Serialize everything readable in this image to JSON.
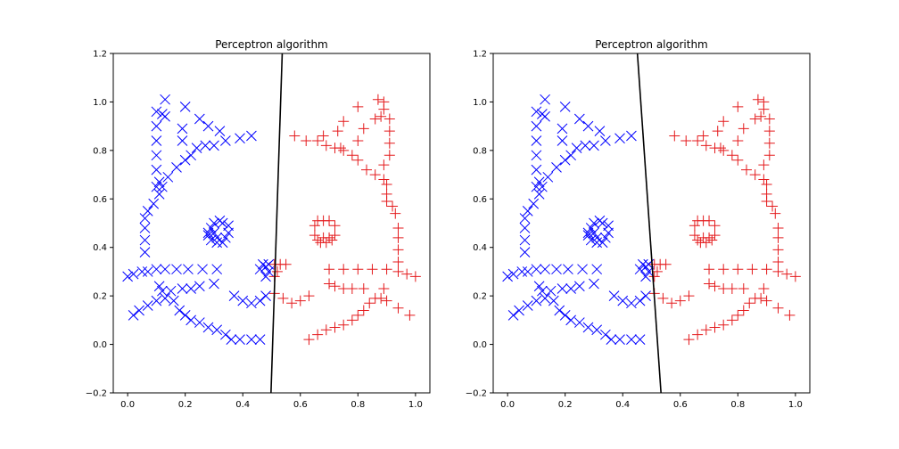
{
  "figure": {
    "background": "#ffffff",
    "axis_color": "#000000",
    "blue": "#0000ff",
    "red": "#e41a1c"
  },
  "chart_data": [
    {
      "type": "scatter",
      "title": "Perceptron algorithm",
      "xlim": [
        -0.05,
        1.05
      ],
      "ylim": [
        -0.2,
        1.2
      ],
      "xticks": [
        "0.0",
        "0.2",
        "0.4",
        "0.6",
        "0.8",
        "1.0"
      ],
      "yticks": [
        "−0.2",
        "0.0",
        "0.2",
        "0.4",
        "0.6",
        "0.8",
        "1.0",
        "1.2"
      ],
      "grid": false,
      "series": [
        {
          "marker": "x",
          "color": "#0000ff",
          "points": [
            [
              0.0,
              0.28
            ],
            [
              0.02,
              0.29
            ],
            [
              0.05,
              0.3
            ],
            [
              0.07,
              0.3
            ],
            [
              0.1,
              0.31
            ],
            [
              0.13,
              0.31
            ],
            [
              0.17,
              0.31
            ],
            [
              0.21,
              0.31
            ],
            [
              0.26,
              0.31
            ],
            [
              0.31,
              0.31
            ],
            [
              0.02,
              0.12
            ],
            [
              0.04,
              0.14
            ],
            [
              0.07,
              0.16
            ],
            [
              0.1,
              0.18
            ],
            [
              0.13,
              0.19
            ],
            [
              0.16,
              0.18
            ],
            [
              0.18,
              0.14
            ],
            [
              0.2,
              0.12
            ],
            [
              0.22,
              0.1
            ],
            [
              0.25,
              0.09
            ],
            [
              0.28,
              0.07
            ],
            [
              0.31,
              0.06
            ],
            [
              0.34,
              0.04
            ],
            [
              0.36,
              0.02
            ],
            [
              0.39,
              0.02
            ],
            [
              0.43,
              0.02
            ],
            [
              0.46,
              0.02
            ],
            [
              0.11,
              0.24
            ],
            [
              0.12,
              0.22
            ],
            [
              0.15,
              0.22
            ],
            [
              0.19,
              0.23
            ],
            [
              0.22,
              0.23
            ],
            [
              0.25,
              0.24
            ],
            [
              0.3,
              0.25
            ],
            [
              0.37,
              0.2
            ],
            [
              0.4,
              0.18
            ],
            [
              0.43,
              0.17
            ],
            [
              0.46,
              0.18
            ],
            [
              0.48,
              0.2
            ],
            [
              0.46,
              0.31
            ],
            [
              0.47,
              0.33
            ],
            [
              0.48,
              0.32
            ],
            [
              0.49,
              0.3
            ],
            [
              0.48,
              0.28
            ],
            [
              0.49,
              0.33
            ],
            [
              0.06,
              0.38
            ],
            [
              0.06,
              0.43
            ],
            [
              0.06,
              0.48
            ],
            [
              0.06,
              0.52
            ],
            [
              0.07,
              0.55
            ],
            [
              0.09,
              0.58
            ],
            [
              0.11,
              0.62
            ],
            [
              0.12,
              0.65
            ],
            [
              0.14,
              0.69
            ],
            [
              0.11,
              0.67
            ],
            [
              0.1,
              0.65
            ],
            [
              0.1,
              0.72
            ],
            [
              0.1,
              0.78
            ],
            [
              0.1,
              0.84
            ],
            [
              0.1,
              0.9
            ],
            [
              0.1,
              0.96
            ],
            [
              0.12,
              0.95
            ],
            [
              0.13,
              0.94
            ],
            [
              0.13,
              1.01
            ],
            [
              0.17,
              0.73
            ],
            [
              0.2,
              0.76
            ],
            [
              0.22,
              0.78
            ],
            [
              0.24,
              0.81
            ],
            [
              0.27,
              0.82
            ],
            [
              0.3,
              0.82
            ],
            [
              0.34,
              0.84
            ],
            [
              0.39,
              0.85
            ],
            [
              0.43,
              0.86
            ],
            [
              0.19,
              0.84
            ],
            [
              0.19,
              0.89
            ],
            [
              0.2,
              0.98
            ],
            [
              0.25,
              0.93
            ],
            [
              0.28,
              0.9
            ],
            [
              0.32,
              0.88
            ],
            [
              0.28,
              0.46
            ],
            [
              0.29,
              0.48
            ],
            [
              0.3,
              0.5
            ],
            [
              0.32,
              0.51
            ],
            [
              0.33,
              0.5
            ],
            [
              0.35,
              0.49
            ],
            [
              0.35,
              0.46
            ],
            [
              0.34,
              0.44
            ],
            [
              0.33,
              0.42
            ],
            [
              0.31,
              0.42
            ],
            [
              0.29,
              0.43
            ],
            [
              0.28,
              0.45
            ],
            [
              0.3,
              0.46
            ],
            [
              0.31,
              0.44
            ]
          ]
        },
        {
          "marker": "+",
          "color": "#e41a1c",
          "points": [
            [
              0.51,
              0.33
            ],
            [
              0.53,
              0.33
            ],
            [
              0.55,
              0.33
            ],
            [
              0.52,
              0.3
            ],
            [
              0.51,
              0.28
            ],
            [
              0.51,
              0.21
            ],
            [
              0.54,
              0.19
            ],
            [
              0.57,
              0.17
            ],
            [
              0.6,
              0.18
            ],
            [
              0.63,
              0.2
            ],
            [
              0.7,
              0.31
            ],
            [
              0.75,
              0.31
            ],
            [
              0.8,
              0.31
            ],
            [
              0.85,
              0.31
            ],
            [
              0.9,
              0.31
            ],
            [
              0.94,
              0.3
            ],
            [
              0.97,
              0.29
            ],
            [
              1.0,
              0.28
            ],
            [
              0.7,
              0.25
            ],
            [
              0.72,
              0.24
            ],
            [
              0.75,
              0.23
            ],
            [
              0.78,
              0.23
            ],
            [
              0.82,
              0.23
            ],
            [
              0.89,
              0.23
            ],
            [
              0.88,
              0.19
            ],
            [
              0.9,
              0.18
            ],
            [
              0.94,
              0.15
            ],
            [
              0.98,
              0.12
            ],
            [
              0.63,
              0.02
            ],
            [
              0.66,
              0.04
            ],
            [
              0.69,
              0.06
            ],
            [
              0.72,
              0.07
            ],
            [
              0.75,
              0.08
            ],
            [
              0.78,
              0.1
            ],
            [
              0.8,
              0.12
            ],
            [
              0.82,
              0.14
            ],
            [
              0.84,
              0.17
            ],
            [
              0.86,
              0.19
            ],
            [
              0.94,
              0.34
            ],
            [
              0.94,
              0.39
            ],
            [
              0.94,
              0.44
            ],
            [
              0.94,
              0.48
            ],
            [
              0.93,
              0.54
            ],
            [
              0.92,
              0.57
            ],
            [
              0.9,
              0.59
            ],
            [
              0.9,
              0.62
            ],
            [
              0.9,
              0.66
            ],
            [
              0.89,
              0.68
            ],
            [
              0.86,
              0.7
            ],
            [
              0.83,
              0.72
            ],
            [
              0.8,
              0.76
            ],
            [
              0.78,
              0.78
            ],
            [
              0.75,
              0.8
            ],
            [
              0.72,
              0.81
            ],
            [
              0.69,
              0.82
            ],
            [
              0.66,
              0.84
            ],
            [
              0.62,
              0.84
            ],
            [
              0.58,
              0.86
            ],
            [
              0.68,
              0.86
            ],
            [
              0.73,
              0.88
            ],
            [
              0.75,
              0.92
            ],
            [
              0.8,
              0.98
            ],
            [
              0.82,
              0.89
            ],
            [
              0.86,
              0.93
            ],
            [
              0.88,
              0.94
            ],
            [
              0.89,
              0.97
            ],
            [
              0.89,
              1.0
            ],
            [
              0.87,
              1.01
            ],
            [
              0.91,
              0.93
            ],
            [
              0.91,
              0.88
            ],
            [
              0.91,
              0.83
            ],
            [
              0.91,
              0.78
            ],
            [
              0.89,
              0.74
            ],
            [
              0.8,
              0.84
            ],
            [
              0.74,
              0.81
            ],
            [
              0.65,
              0.45
            ],
            [
              0.65,
              0.49
            ],
            [
              0.66,
              0.51
            ],
            [
              0.68,
              0.51
            ],
            [
              0.7,
              0.51
            ],
            [
              0.72,
              0.49
            ],
            [
              0.72,
              0.45
            ],
            [
              0.71,
              0.43
            ],
            [
              0.69,
              0.42
            ],
            [
              0.67,
              0.42
            ],
            [
              0.66,
              0.43
            ],
            [
              0.68,
              0.44
            ],
            [
              0.7,
              0.44
            ]
          ]
        }
      ],
      "boundary": [
        [
          0.498,
          -0.2
        ],
        [
          0.537,
          1.2
        ]
      ]
    },
    {
      "type": "scatter",
      "title": "Perceptron algorithm",
      "xlim": [
        -0.05,
        1.05
      ],
      "ylim": [
        -0.2,
        1.2
      ],
      "xticks": [
        "0.0",
        "0.2",
        "0.4",
        "0.6",
        "0.8",
        "1.0"
      ],
      "yticks": [
        "−0.2",
        "0.0",
        "0.2",
        "0.4",
        "0.6",
        "0.8",
        "1.0",
        "1.2"
      ],
      "grid": false,
      "series": [
        {
          "marker": "x",
          "color": "#0000ff",
          "points": "same as chart 1"
        },
        {
          "marker": "+",
          "color": "#e41a1c",
          "points": "same as chart 1"
        }
      ],
      "boundary": [
        [
          0.533,
          -0.2
        ],
        [
          0.451,
          1.2
        ]
      ]
    }
  ]
}
